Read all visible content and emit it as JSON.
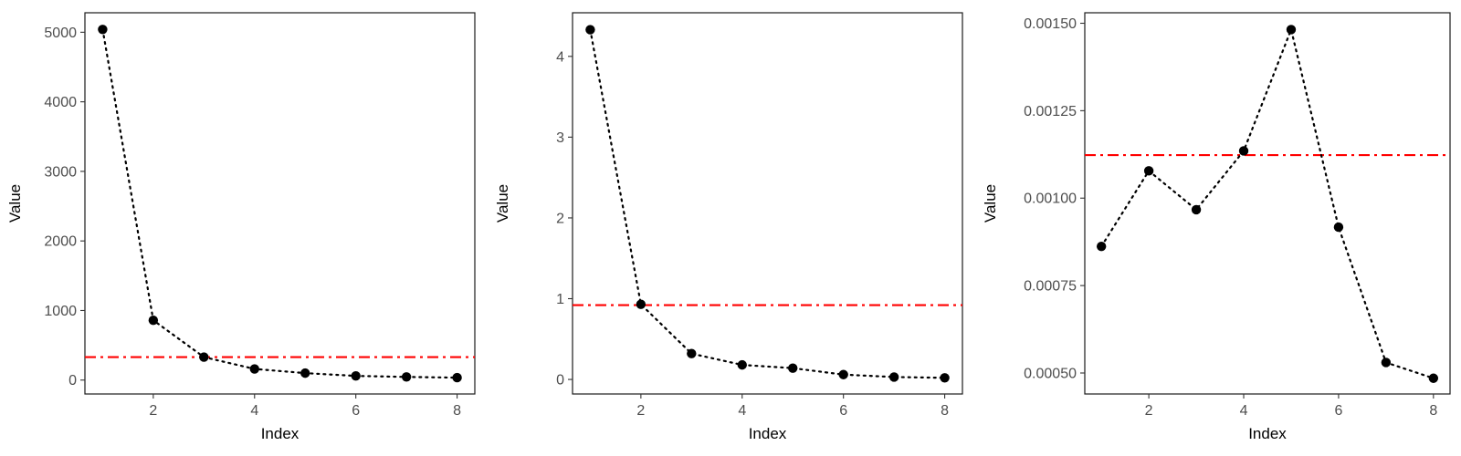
{
  "colors": {
    "point": "#000000",
    "reference_line": "#ff0000"
  },
  "chart_data": [
    {
      "type": "line",
      "line_style": "dotted",
      "markers": "filled-circle",
      "xlabel": "Index",
      "ylabel": "Value",
      "x": [
        1,
        2,
        3,
        4,
        5,
        6,
        7,
        8
      ],
      "values": [
        5040,
        860,
        330,
        160,
        100,
        60,
        45,
        35
      ],
      "reference_line": {
        "y": 330,
        "style": "dash-dot",
        "color": "#ff0000"
      },
      "xlim": [
        0.65,
        8.35
      ],
      "ylim": [
        -200,
        5280
      ],
      "xticks": [
        2,
        4,
        6,
        8
      ],
      "yticks": [
        0,
        1000,
        2000,
        3000,
        4000,
        5000
      ],
      "ytick_labels": [
        "0",
        "1000",
        "2000",
        "3000",
        "4000",
        "5000"
      ],
      "grid": false
    },
    {
      "type": "line",
      "line_style": "dotted",
      "markers": "filled-circle",
      "xlabel": "Index",
      "ylabel": "Value",
      "x": [
        1,
        2,
        3,
        4,
        5,
        6,
        7,
        8
      ],
      "values": [
        4.33,
        0.93,
        0.32,
        0.18,
        0.14,
        0.06,
        0.03,
        0.02
      ],
      "reference_line": {
        "y": 0.92,
        "style": "dash-dot",
        "color": "#ff0000"
      },
      "xlim": [
        0.65,
        8.35
      ],
      "ylim": [
        -0.18,
        4.54
      ],
      "xticks": [
        2,
        4,
        6,
        8
      ],
      "yticks": [
        0,
        1,
        2,
        3,
        4
      ],
      "ytick_labels": [
        "0",
        "1",
        "2",
        "3",
        "4"
      ],
      "grid": false
    },
    {
      "type": "line",
      "line_style": "dotted",
      "markers": "filled-circle",
      "xlabel": "Index",
      "ylabel": "Value",
      "x": [
        1,
        2,
        3,
        4,
        5,
        6,
        7,
        8
      ],
      "values": [
        0.000862,
        0.001078,
        0.000967,
        0.001135,
        0.001482,
        0.000917,
        0.00053,
        0.000485
      ],
      "reference_line": {
        "y": 0.001123,
        "style": "dash-dot",
        "color": "#ff0000"
      },
      "xlim": [
        0.65,
        8.35
      ],
      "ylim": [
        0.00044,
        0.00153
      ],
      "xticks": [
        2,
        4,
        6,
        8
      ],
      "yticks": [
        0.0005,
        0.00075,
        0.001,
        0.00125,
        0.0015
      ],
      "ytick_labels": [
        "0.00050",
        "0.00075",
        "0.00100",
        "0.00125",
        "0.00150"
      ],
      "grid": false
    }
  ]
}
